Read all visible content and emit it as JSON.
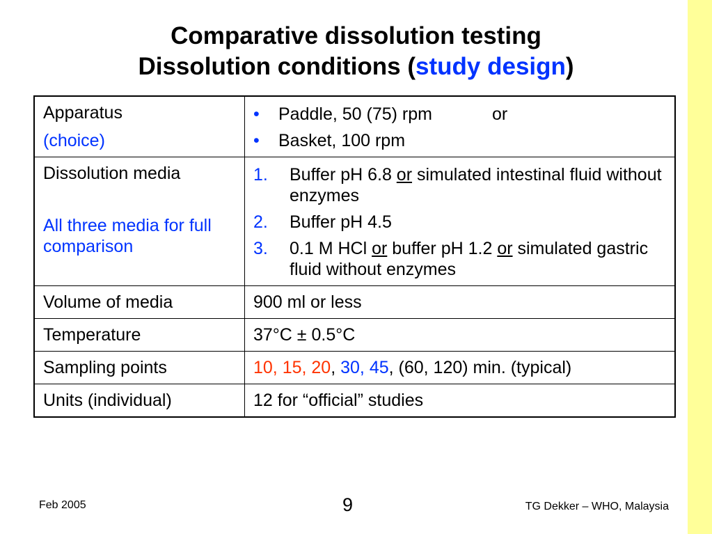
{
  "title": {
    "line1": "Comparative dissolution testing",
    "line2_pre": "Dissolution conditions (",
    "line2_accent": "study design",
    "line2_post": ")"
  },
  "table": {
    "apparatus": {
      "label": "Apparatus",
      "sublabel": "(choice)",
      "option1": "Paddle, 50 (75) rpm",
      "option1_or": "or",
      "option2": "Basket, 100 rpm"
    },
    "media": {
      "label": "Dissolution media",
      "note": "All three media for full comparison",
      "items": [
        {
          "num": "1.",
          "pre": "Buffer pH 6.8 ",
          "or1": "or",
          "post": " simulated intestinal fluid without enzymes"
        },
        {
          "num": "2.",
          "text": "Buffer pH 4.5"
        },
        {
          "num": "3.",
          "pre": "0.1 M HCl ",
          "or1": "or",
          "mid": " buffer pH 1.2 ",
          "or2": "or",
          "post": " simulated gastric fluid without enzymes"
        }
      ]
    },
    "volume": {
      "label": "Volume of media",
      "value": "900 ml or less"
    },
    "temperature": {
      "label": "Temperature",
      "value": "37°C ± 0.5°C"
    },
    "sampling": {
      "label": "Sampling points",
      "red": "10, 15, 20",
      "sep": ", ",
      "blue": "30, 45",
      "rest": ", (60, 120) min. (typical)"
    },
    "units": {
      "label": "Units (individual)",
      "value": "12 for “official” studies"
    }
  },
  "footer": {
    "left": "Feb 2005",
    "page": "9",
    "right": "TG Dekker – WHO, Malaysia"
  },
  "colors": {
    "accent_blue": "#0033ff",
    "accent_red": "#ff3300",
    "side_bar": "#ffff99"
  }
}
